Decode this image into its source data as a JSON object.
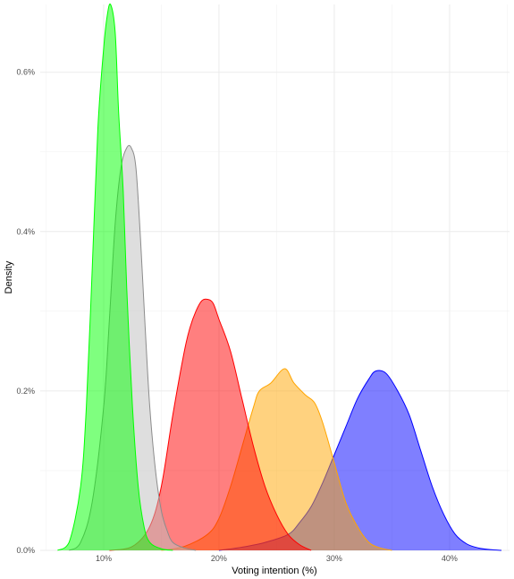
{
  "chart_data": {
    "type": "area",
    "title": "",
    "xlabel": "Voting intention (%)",
    "ylabel": "Density",
    "xlim": [
      4.5,
      45.2
    ],
    "ylim": [
      0,
      0.00685
    ],
    "grid": true,
    "legend": "none",
    "x_ticks": [
      {
        "value": 10,
        "label": "10%"
      },
      {
        "value": 20,
        "label": "20%"
      },
      {
        "value": 30,
        "label": "30%"
      },
      {
        "value": 40,
        "label": "40%"
      }
    ],
    "y_ticks": [
      {
        "value": 0,
        "label": "0.0%"
      },
      {
        "value": 0.002,
        "label": "0.2%"
      },
      {
        "value": 0.004,
        "label": "0.4%"
      },
      {
        "value": 0.006,
        "label": "0.6%"
      }
    ],
    "series": [
      {
        "color": "#0000ff",
        "x": [
          20.0,
          22.0,
          24.0,
          26.0,
          27.0,
          28.0,
          29.0,
          30.0,
          31.0,
          32.0,
          33.0,
          33.6,
          34.5,
          35.5,
          36.5,
          37.5,
          38.5,
          39.5,
          40.5,
          41.5,
          42.5,
          43.5,
          44.5
        ],
        "y": [
          0.0,
          4e-05,
          0.0001,
          0.0002,
          0.00035,
          0.00055,
          0.00085,
          0.0012,
          0.00155,
          0.0019,
          0.00215,
          0.00225,
          0.00222,
          0.002,
          0.0017,
          0.00125,
          0.0008,
          0.00045,
          0.0002,
          8e-05,
          3e-05,
          1e-05,
          0.0
        ]
      },
      {
        "color": "#ffa500",
        "x": [
          15.0,
          17.0,
          19.0,
          20.0,
          21.0,
          22.0,
          23.0,
          23.5,
          24.5,
          25.7,
          26.5,
          27.5,
          28.3,
          29.0,
          30.0,
          31.0,
          32.0,
          33.0,
          34.0,
          35.0
        ],
        "y": [
          0.0,
          5e-05,
          0.0002,
          0.0004,
          0.0008,
          0.0013,
          0.0018,
          0.002,
          0.0021,
          0.00228,
          0.0021,
          0.00195,
          0.00185,
          0.0016,
          0.0011,
          0.0006,
          0.0003,
          0.0001,
          3e-05,
          0.0
        ]
      },
      {
        "color": "#ff0000",
        "x": [
          10.5,
          12.5,
          14.0,
          15.0,
          16.0,
          17.0,
          17.5,
          18.0,
          18.5,
          19.0,
          19.5,
          20.0,
          21.0,
          22.0,
          23.0,
          24.0,
          25.0,
          26.0,
          27.0,
          28.0
        ],
        "y": [
          0.0,
          5e-05,
          0.0003,
          0.0008,
          0.0017,
          0.0025,
          0.0028,
          0.003,
          0.00313,
          0.00315,
          0.0031,
          0.0029,
          0.0025,
          0.0019,
          0.0013,
          0.0008,
          0.00045,
          0.0002,
          7e-05,
          0.0
        ]
      },
      {
        "color": "#bebebe",
        "x": [
          7.0,
          8.0,
          9.0,
          10.0,
          10.5,
          11.0,
          11.5,
          12.0,
          12.4,
          12.8,
          13.2,
          13.6,
          14.0,
          14.5,
          15.0,
          15.5,
          16.0,
          17.0,
          18.0
        ],
        "y": [
          0.0,
          0.0001,
          0.0006,
          0.0018,
          0.0029,
          0.0041,
          0.0048,
          0.00505,
          0.00505,
          0.0048,
          0.0039,
          0.0028,
          0.0018,
          0.001,
          0.0005,
          0.00025,
          0.0001,
          3e-05,
          0.0
        ]
      },
      {
        "color": "#00ff00",
        "x": [
          6.0,
          7.0,
          8.0,
          8.5,
          9.0,
          9.5,
          10.0,
          10.3,
          10.6,
          11.0,
          11.3,
          11.7,
          12.0,
          12.5,
          13.0,
          13.5,
          14.0,
          15.0,
          16.0
        ],
        "y": [
          0.0,
          0.0001,
          0.0008,
          0.0018,
          0.0035,
          0.0053,
          0.0063,
          0.0067,
          0.00685,
          0.0065,
          0.0055,
          0.0045,
          0.0033,
          0.0018,
          0.0008,
          0.0003,
          0.0001,
          2e-05,
          0.0
        ]
      }
    ]
  }
}
